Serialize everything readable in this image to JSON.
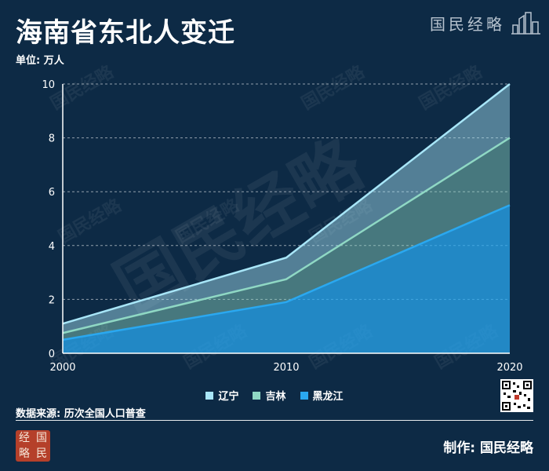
{
  "title": "海南省东北人变迁",
  "unit_label": "单位: 万人",
  "brand": {
    "text": "国民经略",
    "seal_chars": [
      "经",
      "国",
      "略",
      "民"
    ]
  },
  "source_label": "数据来源: 历次全国人口普查",
  "made_by_label": "制作: 国民经略",
  "colors": {
    "background": "#0d2a45",
    "heilongjiang": "#2aa8f0",
    "jilin": "#8fd8c4",
    "liaoning": "#a8e6f8"
  },
  "chart_data": {
    "type": "area",
    "stacked": true,
    "x": [
      2000,
      2010,
      2020
    ],
    "xlim": [
      2000,
      2020
    ],
    "ylim": [
      0,
      10
    ],
    "yticks": [
      0,
      2,
      4,
      6,
      8,
      10
    ],
    "ylabel": "单位: 万人",
    "grid": true,
    "legend_position": "bottom",
    "series": [
      {
        "name": "黑龙江",
        "values": [
          0.5,
          1.9,
          5.5
        ],
        "color": "#2aa8f0"
      },
      {
        "name": "吉林",
        "values": [
          0.25,
          0.85,
          2.5
        ],
        "color": "#8fd8c4"
      },
      {
        "name": "辽宁",
        "values": [
          0.35,
          0.8,
          2.0
        ],
        "color": "#a8e6f8"
      }
    ],
    "legend": [
      "辽宁",
      "吉林",
      "黑龙江"
    ]
  }
}
